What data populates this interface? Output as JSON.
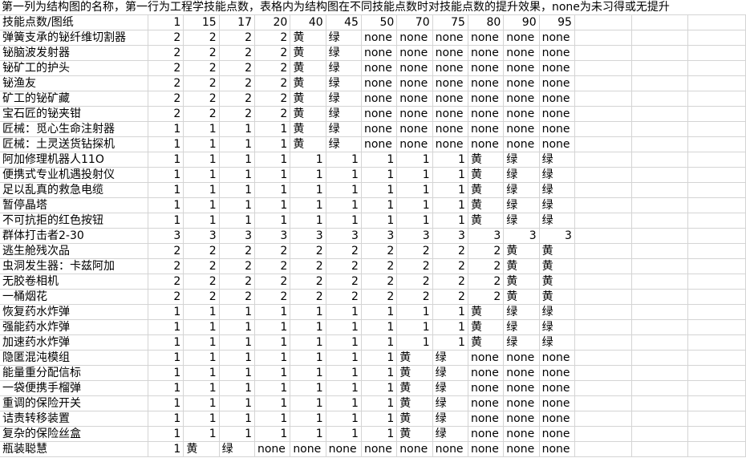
{
  "title": "第一列为结构图的名称，第一行为工程学技能点数，表格内为结构图在不同技能点数时对技能点数的提升效果，none为未习得或无提升",
  "colors": {
    "gridline": "#d4d4d4",
    "text": "#000000",
    "background": "#ffffff"
  },
  "table": {
    "corner_header": "技能点数/图纸",
    "columns": [
      "1",
      "15",
      "17",
      "20",
      "40",
      "45",
      "50",
      "70",
      "75",
      "80",
      "90",
      "95"
    ],
    "empty_trailing_columns": 3,
    "rows": [
      {
        "name": "弹簧支承的铋纤维切割器",
        "values": [
          "2",
          "2",
          "2",
          "2",
          "黄",
          "绿",
          "none",
          "none",
          "none",
          "none",
          "none",
          "none"
        ]
      },
      {
        "name": "铋脑波发射器",
        "values": [
          "2",
          "2",
          "2",
          "2",
          "黄",
          "绿",
          "none",
          "none",
          "none",
          "none",
          "none",
          "none"
        ]
      },
      {
        "name": "铋矿工的护头",
        "values": [
          "2",
          "2",
          "2",
          "2",
          "黄",
          "绿",
          "none",
          "none",
          "none",
          "none",
          "none",
          "none"
        ]
      },
      {
        "name": "铋渔友",
        "values": [
          "2",
          "2",
          "2",
          "2",
          "黄",
          "绿",
          "none",
          "none",
          "none",
          "none",
          "none",
          "none"
        ]
      },
      {
        "name": "矿工的铋矿藏",
        "values": [
          "2",
          "2",
          "2",
          "2",
          "黄",
          "绿",
          "none",
          "none",
          "none",
          "none",
          "none",
          "none"
        ]
      },
      {
        "name": "宝石匠的铋夹钳",
        "values": [
          "2",
          "2",
          "2",
          "2",
          "黄",
          "绿",
          "none",
          "none",
          "none",
          "none",
          "none",
          "none"
        ]
      },
      {
        "name": "匠械：觅心生命注射器",
        "values": [
          "1",
          "1",
          "1",
          "1",
          "黄",
          "绿",
          "none",
          "none",
          "none",
          "none",
          "none",
          "none"
        ]
      },
      {
        "name": "匠械：土灵送货钻探机",
        "values": [
          "1",
          "1",
          "1",
          "1",
          "黄",
          "绿",
          "none",
          "none",
          "none",
          "none",
          "none",
          "none"
        ]
      },
      {
        "name": "阿加修理机器人11O",
        "values": [
          "1",
          "1",
          "1",
          "1",
          "1",
          "1",
          "1",
          "1",
          "1",
          "黄",
          "绿",
          "绿"
        ]
      },
      {
        "name": "便携式专业机遇投射仪",
        "values": [
          "1",
          "1",
          "1",
          "1",
          "1",
          "1",
          "1",
          "1",
          "1",
          "黄",
          "绿",
          "绿"
        ]
      },
      {
        "name": "足以乱真的救急电缆",
        "values": [
          "1",
          "1",
          "1",
          "1",
          "1",
          "1",
          "1",
          "1",
          "1",
          "黄",
          "绿",
          "绿"
        ]
      },
      {
        "name": "暂停晶塔",
        "values": [
          "1",
          "1",
          "1",
          "1",
          "1",
          "1",
          "1",
          "1",
          "1",
          "黄",
          "绿",
          "绿"
        ]
      },
      {
        "name": "不可抗拒的红色按钮",
        "values": [
          "1",
          "1",
          "1",
          "1",
          "1",
          "1",
          "1",
          "1",
          "1",
          "黄",
          "绿",
          "绿"
        ]
      },
      {
        "name": "群体打击者2-30",
        "values": [
          "3",
          "3",
          "3",
          "3",
          "3",
          "3",
          "3",
          "3",
          "3",
          "3",
          "3",
          "3"
        ]
      },
      {
        "name": "逃生舱残次品",
        "values": [
          "2",
          "2",
          "2",
          "2",
          "2",
          "2",
          "2",
          "2",
          "2",
          "2",
          "黄",
          "黄"
        ]
      },
      {
        "name": "虫洞发生器：卡兹阿加",
        "values": [
          "2",
          "2",
          "2",
          "2",
          "2",
          "2",
          "2",
          "2",
          "2",
          "2",
          "黄",
          "黄"
        ]
      },
      {
        "name": "无胶卷相机",
        "values": [
          "2",
          "2",
          "2",
          "2",
          "2",
          "2",
          "2",
          "2",
          "2",
          "2",
          "黄",
          "黄"
        ]
      },
      {
        "name": "一桶烟花",
        "values": [
          "2",
          "2",
          "2",
          "2",
          "2",
          "2",
          "2",
          "2",
          "2",
          "2",
          "黄",
          "黄"
        ]
      },
      {
        "name": "恢复药水炸弹",
        "values": [
          "1",
          "1",
          "1",
          "1",
          "1",
          "1",
          "1",
          "1",
          "1",
          "黄",
          "绿",
          "绿"
        ]
      },
      {
        "name": "强能药水炸弹",
        "values": [
          "1",
          "1",
          "1",
          "1",
          "1",
          "1",
          "1",
          "1",
          "1",
          "黄",
          "绿",
          "绿"
        ]
      },
      {
        "name": "加速药水炸弹",
        "values": [
          "1",
          "1",
          "1",
          "1",
          "1",
          "1",
          "1",
          "1",
          "1",
          "黄",
          "绿",
          "绿"
        ]
      },
      {
        "name": "隐匿混沌模组",
        "values": [
          "1",
          "1",
          "1",
          "1",
          "1",
          "1",
          "1",
          "黄",
          "绿",
          "none",
          "none",
          "none"
        ]
      },
      {
        "name": "能量重分配信标",
        "values": [
          "1",
          "1",
          "1",
          "1",
          "1",
          "1",
          "1",
          "黄",
          "绿",
          "none",
          "none",
          "none"
        ]
      },
      {
        "name": "一袋便携手榴弹",
        "values": [
          "1",
          "1",
          "1",
          "1",
          "1",
          "1",
          "1",
          "黄",
          "绿",
          "none",
          "none",
          "none"
        ]
      },
      {
        "name": "重调的保险开关",
        "values": [
          "1",
          "1",
          "1",
          "1",
          "1",
          "1",
          "1",
          "黄",
          "绿",
          "none",
          "none",
          "none"
        ]
      },
      {
        "name": "诘责转移装置",
        "values": [
          "1",
          "1",
          "1",
          "1",
          "1",
          "1",
          "1",
          "黄",
          "绿",
          "none",
          "none",
          "none"
        ]
      },
      {
        "name": "复杂的保险丝盒",
        "values": [
          "1",
          "1",
          "1",
          "1",
          "1",
          "1",
          "1",
          "黄",
          "绿",
          "none",
          "none",
          "none"
        ]
      },
      {
        "name": "瓶装聪慧",
        "values": [
          "1",
          "黄",
          "绿",
          "none",
          "none",
          "none",
          "none",
          "none",
          "none",
          "none",
          "none",
          "none"
        ]
      }
    ]
  }
}
